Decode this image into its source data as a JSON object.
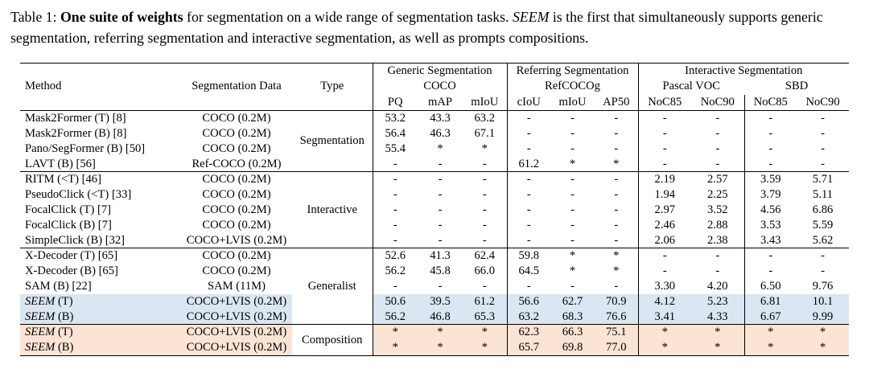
{
  "caption": {
    "prefix": "Table 1: ",
    "bold": "One suite of weights",
    "mid": " for segmentation on a wide range of segmentation tasks. ",
    "em": "SEEM",
    "suffix": " is the first that simultaneously supports generic segmentation, referring segmentation and interactive segmentation, as well as prompts compositions."
  },
  "table": {
    "colors": {
      "seem_highlight": "#dbe6f3",
      "composition_highlight": "#fbe4d4"
    },
    "headers": {
      "method": "Method",
      "segmentation_data": "Segmentation Data",
      "type": "Type",
      "generic": {
        "title": "Generic Segmentation",
        "dataset": "COCO",
        "cols": [
          "PQ",
          "mAP",
          "mIoU"
        ]
      },
      "referring": {
        "title": "Referring Segmentation",
        "dataset": "RefCOCOg",
        "cols": [
          "cIoU",
          "mIoU",
          "AP50"
        ]
      },
      "interactive": {
        "title": "Interactive Segmentation",
        "datasets": [
          {
            "name": "Pascal VOC",
            "cols": [
              "NoC85",
              "NoC90"
            ]
          },
          {
            "name": "SBD",
            "cols": [
              "NoC85",
              "NoC90"
            ]
          }
        ]
      }
    },
    "rows": [
      {
        "method_em": "",
        "method_rest": "Mask2Former (T) [8]",
        "data": "COCO (0.2M)",
        "type": "Segmentation",
        "type_rowspan": 4,
        "group_start": false,
        "highlight": "",
        "cells": [
          "53.2",
          "43.3",
          "63.2",
          "-",
          "-",
          "-",
          "-",
          "-",
          "-",
          "-"
        ]
      },
      {
        "method_em": "",
        "method_rest": "Mask2Former (B) [8]",
        "data": "COCO (0.2M)",
        "highlight": "",
        "cells": [
          "56.4",
          "46.3",
          "67.1",
          "-",
          "-",
          "-",
          "-",
          "-",
          "-",
          "-"
        ]
      },
      {
        "method_em": "",
        "method_rest": "Pano/SegFormer (B) [50]",
        "data": "COCO (0.2M)",
        "highlight": "",
        "cells": [
          "55.4",
          "*",
          "*",
          "-",
          "-",
          "-",
          "-",
          "-",
          "-",
          "-"
        ]
      },
      {
        "method_em": "",
        "method_rest": "LAVT (B) [56]",
        "data": "Ref-COCO (0.2M)",
        "highlight": "",
        "cells": [
          "-",
          "-",
          "-",
          "61.2",
          "*",
          "*",
          "-",
          "-",
          "-",
          "-"
        ]
      },
      {
        "method_em": "",
        "method_rest": "RITM (<T) [46]",
        "data": "COCO (0.2M)",
        "type": "Interactive",
        "type_rowspan": 5,
        "group_start": true,
        "highlight": "",
        "cells": [
          "-",
          "-",
          "-",
          "-",
          "-",
          "-",
          "2.19",
          "2.57",
          "3.59",
          "5.71"
        ]
      },
      {
        "method_em": "",
        "method_rest": "PseudoClick (<T) [33]",
        "data": "COCO (0.2M)",
        "highlight": "",
        "cells": [
          "-",
          "-",
          "-",
          "-",
          "-",
          "-",
          "1.94",
          "2.25",
          "3.79",
          "5.11"
        ]
      },
      {
        "method_em": "",
        "method_rest": "FocalClick (T) [7]",
        "data": "COCO (0.2M)",
        "highlight": "",
        "cells": [
          "-",
          "-",
          "-",
          "-",
          "-",
          "-",
          "2.97",
          "3.52",
          "4.56",
          "6.86"
        ]
      },
      {
        "method_em": "",
        "method_rest": "FocalClick (B) [7]",
        "data": "COCO (0.2M)",
        "highlight": "",
        "cells": [
          "-",
          "-",
          "-",
          "-",
          "-",
          "-",
          "2.46",
          "2.88",
          "3.53",
          "5.59"
        ]
      },
      {
        "method_em": "",
        "method_rest": "SimpleClick (B) [32]",
        "data": "COCO+LVIS (0.2M)",
        "highlight": "",
        "cells": [
          "-",
          "-",
          "-",
          "-",
          "-",
          "-",
          "2.06",
          "2.38",
          "3.43",
          "5.62"
        ]
      },
      {
        "method_em": "",
        "method_rest": "X-Decoder (T) [65]",
        "data": "COCO (0.2M)",
        "type": "Generalist",
        "type_rowspan": 5,
        "group_start": true,
        "highlight": "",
        "cells": [
          "52.6",
          "41.3",
          "62.4",
          "59.8",
          "*",
          "*",
          "-",
          "-",
          "-",
          "-"
        ]
      },
      {
        "method_em": "",
        "method_rest": "X-Decoder (B) [65]",
        "data": "COCO (0.2M)",
        "highlight": "",
        "cells": [
          "56.2",
          "45.8",
          "66.0",
          "64.5",
          "*",
          "*",
          "-",
          "-",
          "-",
          "-"
        ]
      },
      {
        "method_em": "",
        "method_rest": "SAM (B) [22]",
        "data": "SAM (11M)",
        "highlight": "",
        "cells": [
          "-",
          "-",
          "-",
          "-",
          "-",
          "-",
          "3.30",
          "4.20",
          "6.50",
          "9.76"
        ]
      },
      {
        "method_em": "SEEM",
        "method_rest": " (T)",
        "data": "COCO+LVIS (0.2M)",
        "highlight": "blue",
        "cells": [
          "50.6",
          "39.5",
          "61.2",
          "56.6",
          "62.7",
          "70.9",
          "4.12",
          "5.23",
          "6.81",
          "10.1"
        ]
      },
      {
        "method_em": "SEEM",
        "method_rest": " (B)",
        "data": "COCO+LVIS (0.2M)",
        "highlight": "blue",
        "cells": [
          "56.2",
          "46.8",
          "65.3",
          "63.2",
          "68.3",
          "76.6",
          "3.41",
          "4.33",
          "6.67",
          "9.99"
        ]
      },
      {
        "method_em": "SEEM",
        "method_rest": " (T)",
        "data": "COCO+LVIS (0.2M)",
        "type": "Composition",
        "type_rowspan": 2,
        "group_start": true,
        "highlight": "orange",
        "cells": [
          "*",
          "*",
          "*",
          "62.3",
          "66.3",
          "75.1",
          "*",
          "*",
          "*",
          "*"
        ]
      },
      {
        "method_em": "SEEM",
        "method_rest": " (B)",
        "data": "COCO+LVIS (0.2M)",
        "highlight": "orange",
        "cells": [
          "*",
          "*",
          "*",
          "65.7",
          "69.8",
          "77.0",
          "*",
          "*",
          "*",
          "*"
        ]
      }
    ]
  }
}
